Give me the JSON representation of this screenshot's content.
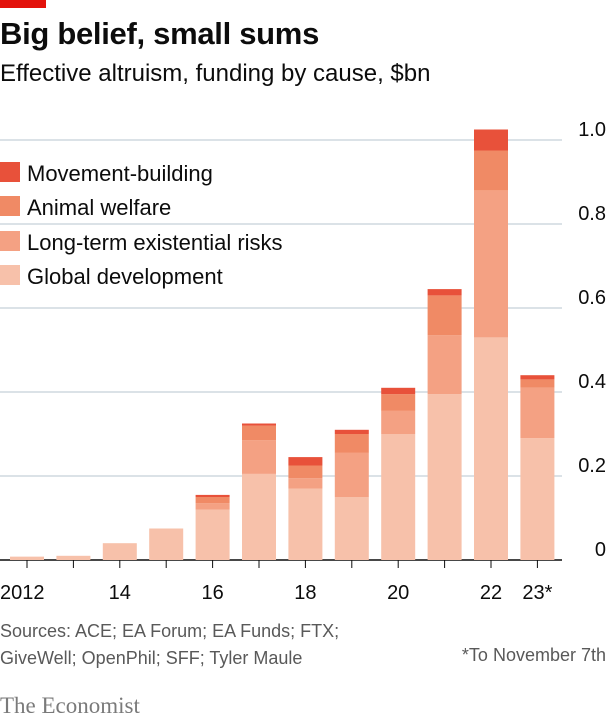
{
  "header": {
    "title": "Big belief, small sums",
    "subtitle": "Effective altruism, funding by cause, $bn"
  },
  "footer": {
    "sources_line1": "Sources: ACE; EA Forum; EA Funds; FTX;",
    "sources_line2": "GiveWell; OpenPhil; SFF; Tyler Maule",
    "footnote": "*To November 7th",
    "brand": "The Economist"
  },
  "colors": {
    "accent_bar": "#e3120b",
    "gridline": "#b7c6cf"
  },
  "chart_data": {
    "type": "bar",
    "stacked": true,
    "categories": [
      "2012",
      "2013",
      "2014",
      "2015",
      "2016",
      "2017",
      "2018",
      "2019",
      "2020",
      "2021",
      "2022",
      "2023*"
    ],
    "x_tick_labels": [
      "2012",
      "",
      "14",
      "",
      "16",
      "",
      "18",
      "",
      "20",
      "",
      "22",
      "23*"
    ],
    "ylim": [
      0,
      1.0
    ],
    "y_ticks": [
      0,
      0.2,
      0.4,
      0.6,
      0.8,
      1.0
    ],
    "y_tick_labels": [
      "0",
      "0.2",
      "0.4",
      "0.6",
      "0.8",
      "1.0"
    ],
    "y_axis_side": "right",
    "grid": true,
    "legend_position": "top-left",
    "series": [
      {
        "name": "Global development",
        "color": "#f7c1aa",
        "values": [
          0.008,
          0.01,
          0.04,
          0.075,
          0.12,
          0.205,
          0.17,
          0.15,
          0.3,
          0.395,
          0.53,
          0.29
        ]
      },
      {
        "name": "Long-term existential risks",
        "color": "#f4a183",
        "values": [
          0.0,
          0.0,
          0.0,
          0.0,
          0.015,
          0.08,
          0.025,
          0.105,
          0.055,
          0.14,
          0.35,
          0.12
        ]
      },
      {
        "name": "Animal welfare",
        "color": "#f08a65",
        "values": [
          0.0,
          0.0,
          0.0,
          0.0,
          0.015,
          0.035,
          0.03,
          0.045,
          0.04,
          0.095,
          0.095,
          0.02
        ]
      },
      {
        "name": "Movement-building",
        "color": "#e8513a",
        "values": [
          0.0,
          0.0,
          0.0,
          0.0,
          0.005,
          0.005,
          0.02,
          0.01,
          0.015,
          0.015,
          0.05,
          0.01
        ]
      }
    ],
    "legend_order": [
      "Movement-building",
      "Animal welfare",
      "Long-term existential risks",
      "Global development"
    ]
  }
}
